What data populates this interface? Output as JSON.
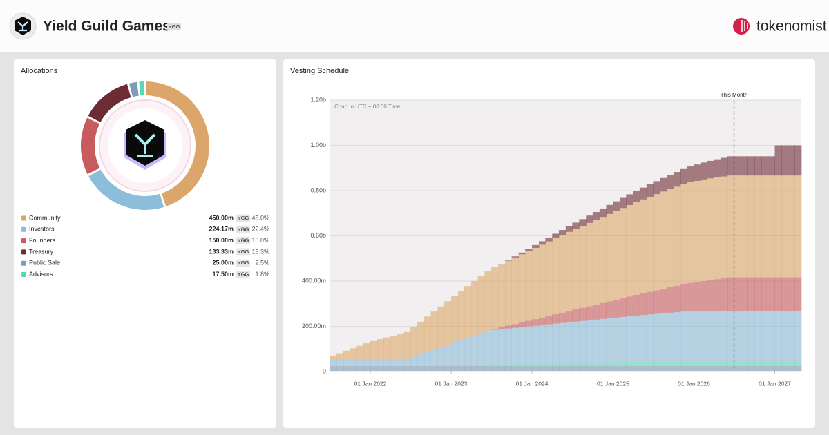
{
  "header": {
    "title": "Yield Guild Games",
    "ticker": "YGG",
    "brand": "tokenomist"
  },
  "chart_data": [
    {
      "type": "pie",
      "title": "Allocations",
      "categories": [
        "Community",
        "Investors",
        "Founders",
        "Treasury",
        "Public Sale",
        "Advisors"
      ],
      "values": [
        450,
        224.17,
        150,
        133.33,
        25,
        17.5
      ],
      "value_labels": [
        "450.00m",
        "224.17m",
        "150.00m",
        "133.33m",
        "25.00m",
        "17.50m"
      ],
      "shares": [
        45.0,
        22.4,
        15.0,
        13.3,
        2.5,
        1.8
      ],
      "share_labels": [
        "45.0%",
        "22.4%",
        "15.0%",
        "13.3%",
        "2.5%",
        "1.8%"
      ],
      "colors": [
        "#dca66b",
        "#8cbdd9",
        "#c75b5e",
        "#6d2b33",
        "#7e9db0",
        "#55d8b8"
      ]
    },
    {
      "type": "stacked-step-area",
      "title": "Vesting Schedule",
      "subtitle": "Chart in UTC + 00:00 Time",
      "x": [
        "2021-07-01",
        "2021-08-01",
        "2021-09-01",
        "2021-10-01",
        "2021-11-01",
        "2021-12-01",
        "2022-01-01",
        "2022-02-01",
        "2022-03-01",
        "2022-04-01",
        "2022-05-01",
        "2022-06-01",
        "2022-07-01",
        "2022-08-01",
        "2022-09-01",
        "2022-10-01",
        "2022-11-01",
        "2022-12-01",
        "2023-01-01",
        "2023-02-01",
        "2023-03-01",
        "2023-04-01",
        "2023-05-01",
        "2023-06-01",
        "2023-07-01",
        "2023-08-01",
        "2023-09-01",
        "2023-10-01",
        "2023-11-01",
        "2023-12-01",
        "2024-01-01",
        "2024-02-01",
        "2024-03-01",
        "2024-04-01",
        "2024-05-01",
        "2024-06-01",
        "2024-07-01",
        "2024-08-01",
        "2024-09-01",
        "2024-10-01",
        "2024-11-01",
        "2024-12-01",
        "2025-01-01",
        "2025-02-01",
        "2025-03-01",
        "2025-04-01",
        "2025-05-01",
        "2025-06-01",
        "2025-07-01",
        "2025-08-01",
        "2025-09-01",
        "2025-10-01",
        "2025-11-01",
        "2025-12-01",
        "2026-01-01",
        "2026-02-01",
        "2026-03-01",
        "2026-04-01",
        "2026-05-01",
        "2026-06-01",
        "2026-07-01",
        "2026-08-01",
        "2026-09-01",
        "2026-10-01",
        "2026-11-01",
        "2026-12-01",
        "2027-01-01",
        "2027-02-01",
        "2027-03-01",
        "2027-04-01"
      ],
      "series": [
        {
          "color": "#7e9db0",
          "values": [
            25,
            25,
            25,
            25,
            25,
            25,
            25,
            25,
            25,
            25,
            25,
            25,
            25,
            25,
            25,
            25,
            25,
            25,
            25,
            25,
            25,
            25,
            25,
            25,
            25,
            25,
            25,
            25,
            25,
            25,
            25,
            25,
            25,
            25,
            25,
            25,
            25,
            25,
            25,
            25,
            25,
            25,
            25,
            25,
            25,
            25,
            25,
            25,
            25,
            25,
            25,
            25,
            25,
            25,
            25,
            25,
            25,
            25,
            25,
            25,
            25,
            25,
            25,
            25,
            25,
            25,
            25,
            25,
            25,
            25
          ]
        },
        {
          "color": "#55d8b8",
          "values": [
            0,
            0,
            0,
            0,
            0,
            0,
            0,
            0,
            0,
            0,
            0,
            0,
            1,
            1.5,
            2,
            2.5,
            3,
            3.5,
            4,
            4.5,
            5,
            5.5,
            6,
            6.5,
            7,
            7.5,
            8,
            8.5,
            9,
            9.5,
            10,
            10.5,
            11,
            11.5,
            12,
            12.5,
            13,
            13.5,
            14,
            14.5,
            15,
            15.5,
            16,
            16.5,
            17,
            17.5,
            17.5,
            17.5,
            17.5,
            17.5,
            17.5,
            17.5,
            17.5,
            17.5,
            17.5,
            17.5,
            17.5,
            17.5,
            17.5,
            17.5,
            17.5,
            17.5,
            17.5,
            17.5,
            17.5,
            17.5,
            17.5,
            17.5,
            17.5,
            17.5
          ]
        },
        {
          "color": "#8cbdd9",
          "values": [
            30,
            30,
            30,
            30,
            30,
            30,
            30,
            30,
            30,
            30,
            30,
            30,
            40,
            50,
            60,
            70,
            80,
            90,
            100,
            110,
            120,
            130,
            140,
            150,
            152.5,
            155,
            157.5,
            160,
            162.5,
            165,
            167.5,
            170,
            172.5,
            175,
            177.5,
            180,
            182.5,
            185,
            187.5,
            190,
            192.5,
            195,
            197.5,
            200,
            202.5,
            205,
            207.5,
            210,
            212.5,
            215,
            217.5,
            220,
            222.5,
            224.17,
            224.17,
            224.17,
            224.17,
            224.17,
            224.17,
            224.17,
            224.17,
            224.17,
            224.17,
            224.17,
            224.17,
            224.17,
            224.17,
            224.17,
            224.17,
            224.17
          ]
        },
        {
          "color": "#c75b5e",
          "values": [
            0,
            0,
            0,
            0,
            0,
            0,
            0,
            0,
            0,
            0,
            0,
            0,
            0,
            0,
            0,
            0,
            0,
            0,
            0,
            0,
            0,
            0,
            0,
            0,
            4.2,
            8.3,
            12.5,
            16.7,
            20.8,
            25,
            29.2,
            33.3,
            37.5,
            41.7,
            45.8,
            50,
            54.2,
            58.3,
            62.5,
            66.7,
            70.8,
            75,
            79.2,
            83.3,
            87.5,
            91.7,
            95.8,
            100,
            104.2,
            108.3,
            112.5,
            116.7,
            120.8,
            125,
            129.2,
            133.3,
            137.5,
            141.7,
            145.8,
            150,
            150,
            150,
            150,
            150,
            150,
            150,
            150,
            150,
            150,
            150
          ]
        },
        {
          "color": "#dca66b",
          "values": [
            15,
            26,
            37,
            48,
            59,
            70,
            80,
            88,
            96,
            104,
            112,
            120,
            132,
            144,
            156,
            168,
            180,
            192,
            204,
            216,
            228,
            240,
            252,
            264,
            272,
            280,
            287,
            294,
            301,
            308,
            315,
            322,
            329,
            336,
            343,
            350,
            356,
            362,
            368,
            374,
            380,
            386,
            392,
            398,
            404,
            410,
            415,
            420,
            425,
            430,
            434,
            438,
            442,
            445,
            447,
            449,
            450,
            450,
            450,
            450,
            450,
            450,
            450,
            450,
            450,
            450,
            450,
            450,
            450,
            450
          ]
        },
        {
          "color": "#6d2b33",
          "values": [
            0,
            0,
            0,
            0,
            0,
            0,
            0,
            0,
            0,
            0,
            0,
            0,
            0,
            0,
            0,
            0,
            0,
            0,
            0,
            0,
            0,
            0,
            0,
            0,
            0,
            0,
            2.5,
            5,
            7.5,
            10,
            12.5,
            15,
            17.5,
            20,
            22.5,
            25,
            27.5,
            30,
            32.5,
            35,
            37.5,
            40,
            42.5,
            45,
            47.5,
            50,
            52.5,
            55,
            57.5,
            60,
            62.5,
            65,
            67.5,
            70,
            72.5,
            75,
            77.5,
            80,
            82.5,
            85,
            85,
            85,
            85,
            85,
            85,
            85,
            133.33,
            133.33,
            133.33,
            133.33
          ]
        }
      ],
      "xlim": [
        "2021-07-01",
        "2027-05-01"
      ],
      "xticks": [
        {
          "value": "2022-01-01",
          "label": "01 Jan 2022"
        },
        {
          "value": "2023-01-01",
          "label": "01 Jan 2023"
        },
        {
          "value": "2024-01-01",
          "label": "01 Jan 2024"
        },
        {
          "value": "2025-01-01",
          "label": "01 Jan 2025"
        },
        {
          "value": "2026-01-01",
          "label": "01 Jan 2026"
        },
        {
          "value": "2027-01-01",
          "label": "01 Jan 2027"
        }
      ],
      "ylim": [
        0,
        1200
      ],
      "yticks": [
        0,
        {
          "value": 200,
          "label": "200.00m"
        },
        {
          "value": 400,
          "label": "400.00m"
        },
        {
          "value": 600,
          "label": "0.60b"
        },
        {
          "value": 800,
          "label": "0.80b"
        },
        {
          "value": 1000,
          "label": "1.00b"
        },
        {
          "value": 1200,
          "label": "1.20b"
        }
      ],
      "grid": true,
      "annotations": [
        {
          "label": "This Month",
          "x": "2026-07-01"
        }
      ]
    }
  ]
}
